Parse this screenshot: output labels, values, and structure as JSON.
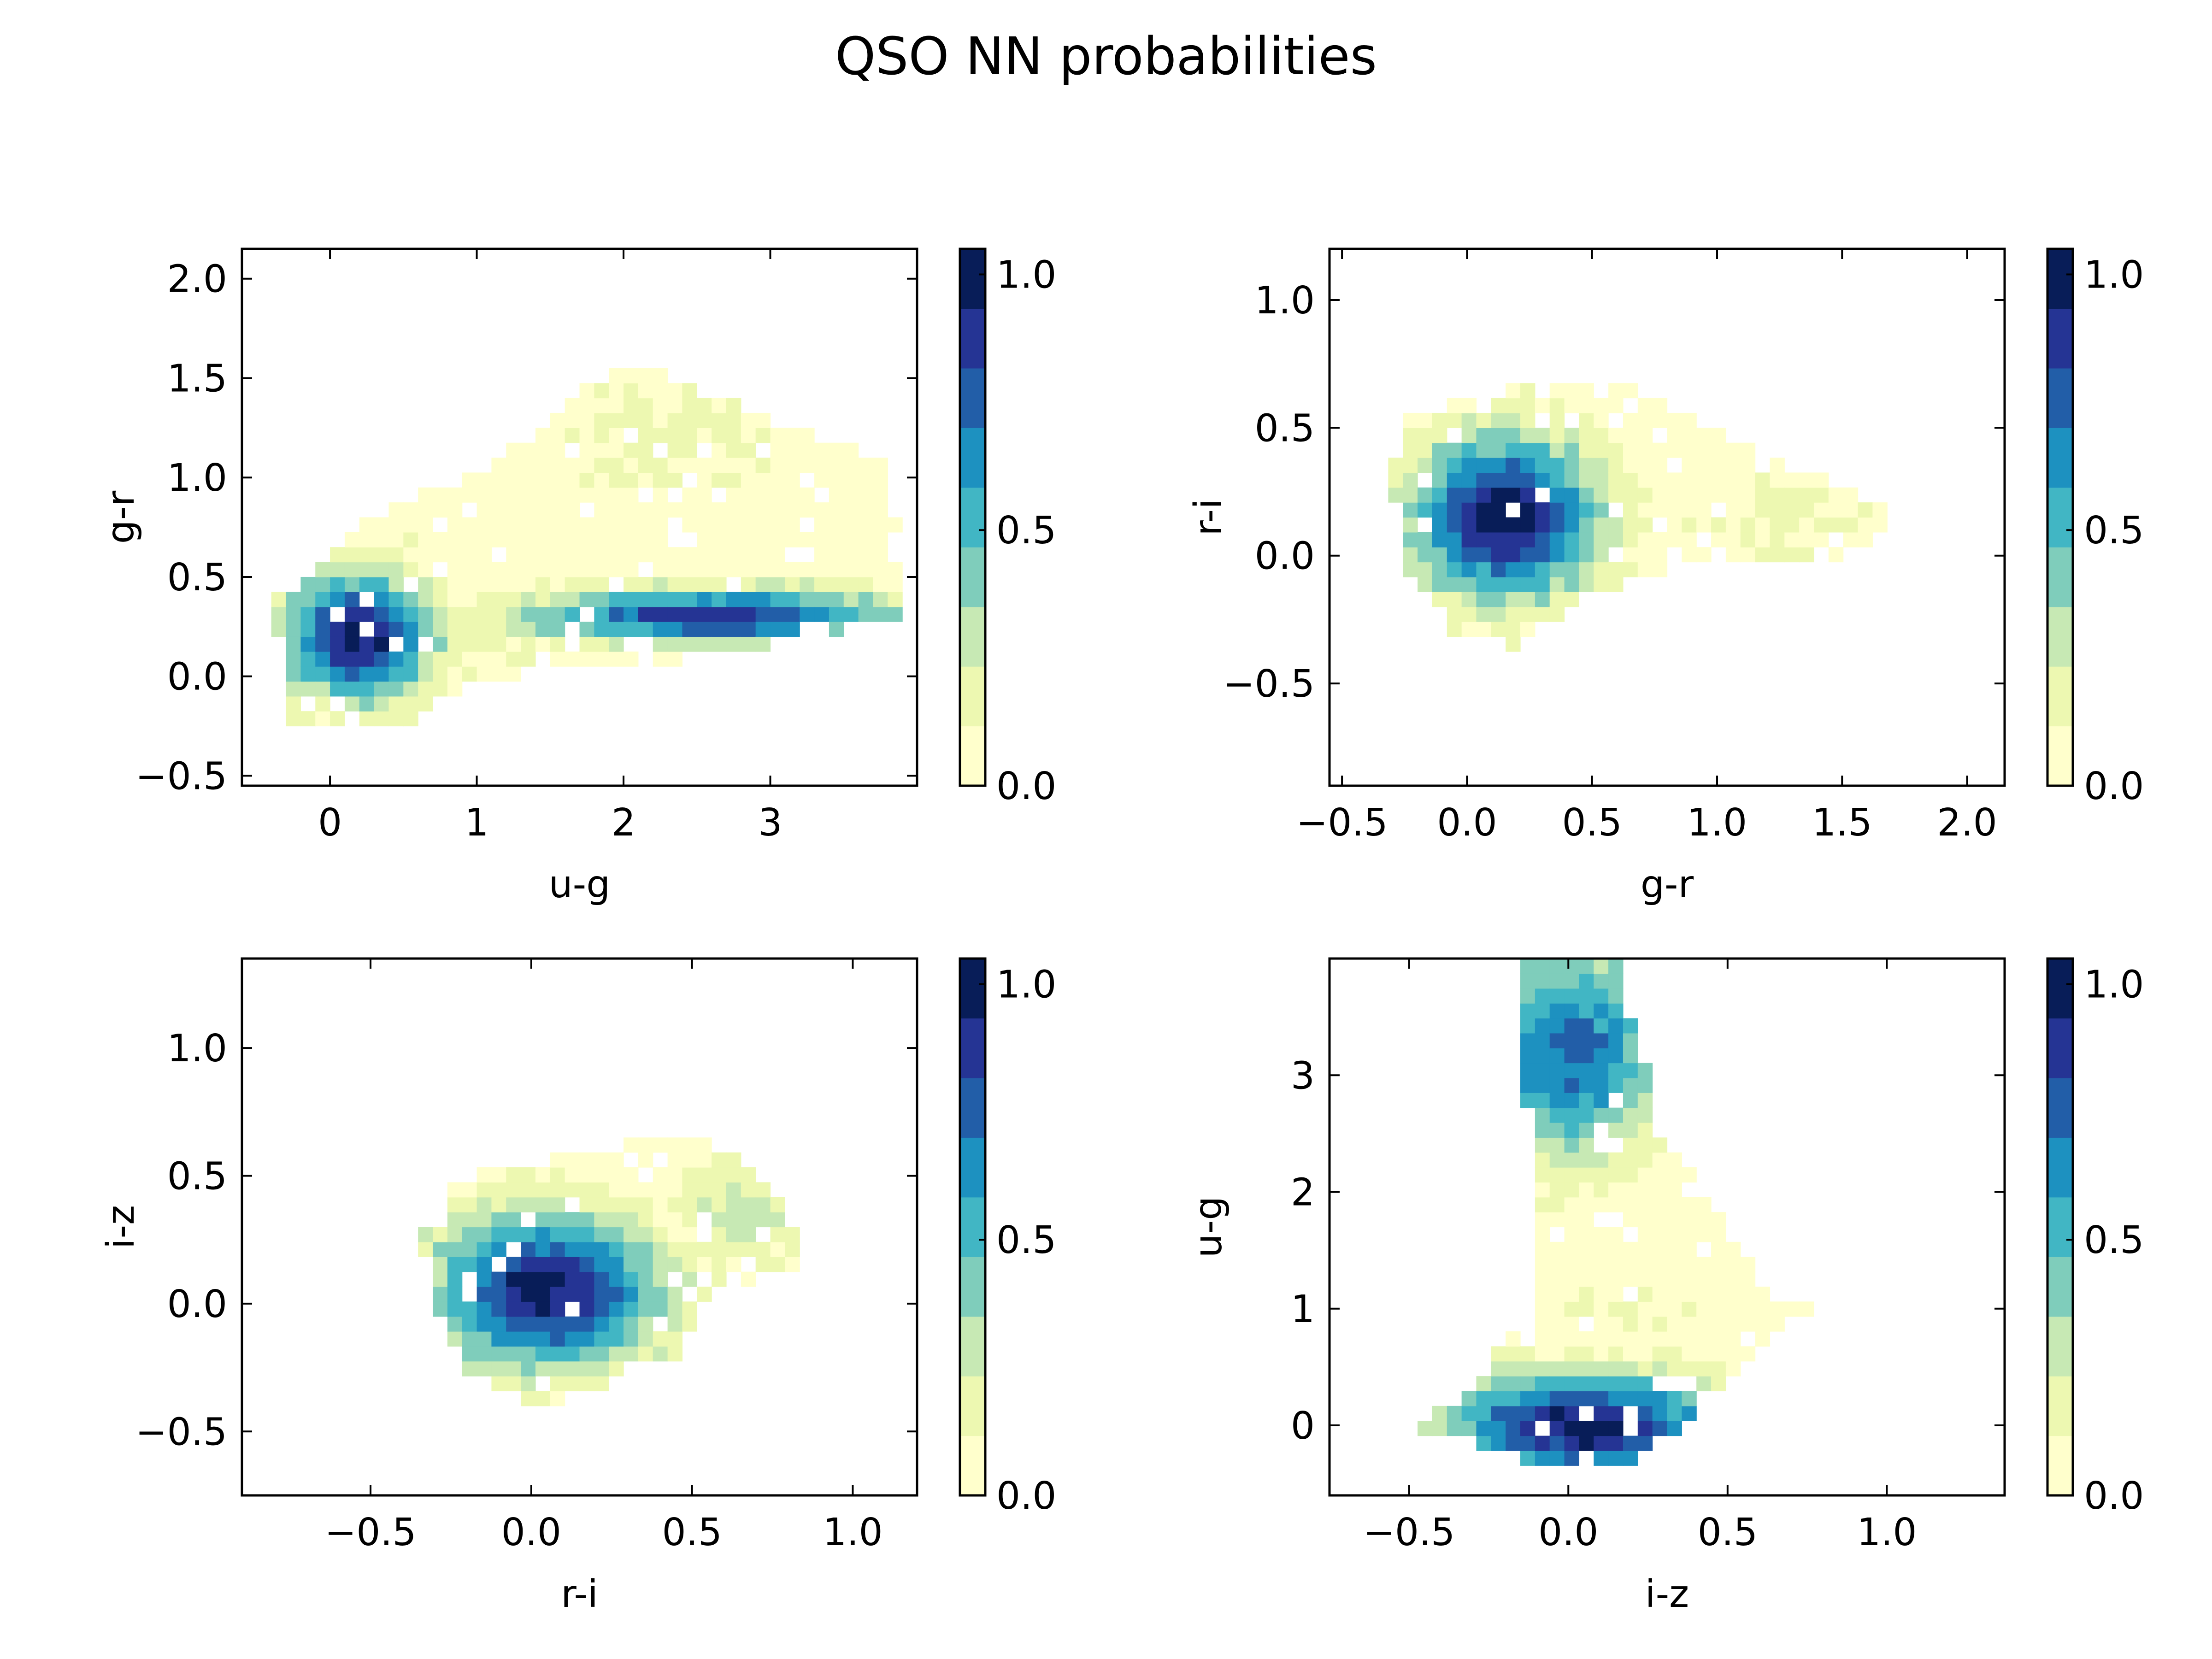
{
  "figure": {
    "title": "QSO NN probabilities"
  },
  "colors": {
    "levels": [
      "#ffffcc",
      "#edf8b1",
      "#c7e9b4",
      "#7fcdbb",
      "#41b6c4",
      "#1d91c0",
      "#225ea8",
      "#253494",
      "#081d58"
    ],
    "ink": "#000000"
  },
  "chart_data": [
    {
      "type": "contour",
      "title": "",
      "xlabel": "u-g",
      "ylabel": "g-r",
      "xlim": [
        -0.6,
        4.0
      ],
      "ylim": [
        -0.55,
        2.15
      ],
      "xticks": [
        "0",
        "1",
        "2",
        "3"
      ],
      "xtick_values": [
        0,
        1,
        2,
        3
      ],
      "yticks": [
        "−0.5",
        "0.0",
        "0.5",
        "1.0",
        "1.5",
        "2.0"
      ],
      "ytick_values": [
        -0.5,
        0,
        0.5,
        1.0,
        1.5,
        2.0
      ],
      "colorbar": {
        "ticks": [
          "0.0",
          "0.5",
          "1.0"
        ],
        "tick_values": [
          0,
          0.5,
          1.0
        ],
        "range": [
          0,
          1.05
        ]
      },
      "peaks": [
        {
          "x": 0.2,
          "y": 0.2,
          "sx": 0.5,
          "sy": 0.32,
          "p": 1.0
        },
        {
          "x": 2.6,
          "y": 0.3,
          "sx": 1.3,
          "sy": 0.14,
          "p": 0.88
        },
        {
          "x": 1.4,
          "y": 0.25,
          "sx": 0.3,
          "sy": 0.2,
          "p": 0.2
        },
        {
          "x": 2.3,
          "y": 1.2,
          "sx": 0.8,
          "sy": 0.4,
          "p": 0.15
        }
      ],
      "region": [
        [
          -0.45,
          0.35
        ],
        [
          -0.05,
          0.6
        ],
        [
          0.5,
          0.9
        ],
        [
          1.0,
          1.0
        ],
        [
          2.0,
          1.6
        ],
        [
          3.0,
          1.3
        ],
        [
          3.8,
          1.1
        ],
        [
          3.95,
          0.3
        ],
        [
          3.2,
          0.2
        ],
        [
          2.2,
          0.05
        ],
        [
          1.6,
          0.05
        ],
        [
          0.9,
          -0.05
        ],
        [
          0.55,
          -0.25
        ],
        [
          -0.25,
          -0.25
        ],
        [
          -0.3,
          0.1
        ]
      ]
    },
    {
      "type": "contour",
      "title": "",
      "xlabel": "g-r",
      "ylabel": "r-i",
      "xlim": [
        -0.55,
        2.15
      ],
      "ylim": [
        -0.9,
        1.2
      ],
      "xticks": [
        "−0.5",
        "0.0",
        "0.5",
        "1.0",
        "1.5",
        "2.0"
      ],
      "xtick_values": [
        -0.5,
        0,
        0.5,
        1.0,
        1.5,
        2.0
      ],
      "yticks": [
        "−0.5",
        "0.0",
        "0.5",
        "1.0"
      ],
      "ytick_values": [
        -0.5,
        0,
        0.5,
        1.0
      ],
      "colorbar": {
        "ticks": [
          "0.0",
          "0.5",
          "1.0"
        ],
        "tick_values": [
          0,
          0.5,
          1.0
        ],
        "range": [
          0,
          1.05
        ]
      },
      "peaks": [
        {
          "x": 0.15,
          "y": 0.15,
          "sx": 0.38,
          "sy": 0.32,
          "p": 1.0
        },
        {
          "x": 1.2,
          "y": 0.12,
          "sx": 0.45,
          "sy": 0.2,
          "p": 0.15
        }
      ],
      "region": [
        [
          -0.25,
          0.55
        ],
        [
          0.2,
          0.65
        ],
        [
          0.6,
          0.7
        ],
        [
          1.0,
          0.5
        ],
        [
          1.3,
          0.35
        ],
        [
          1.75,
          0.15
        ],
        [
          1.5,
          0.0
        ],
        [
          1.0,
          0.0
        ],
        [
          0.5,
          -0.15
        ],
        [
          0.2,
          -0.35
        ],
        [
          -0.05,
          -0.3
        ],
        [
          -0.25,
          -0.05
        ],
        [
          -0.3,
          0.3
        ]
      ]
    },
    {
      "type": "contour",
      "title": "",
      "xlabel": "r-i",
      "ylabel": "i-z",
      "xlim": [
        -0.9,
        1.2
      ],
      "ylim": [
        -0.75,
        1.35
      ],
      "xticks": [
        "−0.5",
        "0.0",
        "0.5",
        "1.0"
      ],
      "xtick_values": [
        -0.5,
        0,
        0.5,
        1.0
      ],
      "yticks": [
        "−0.5",
        "0.0",
        "0.5",
        "1.0"
      ],
      "ytick_values": [
        -0.5,
        0,
        0.5,
        1.0
      ],
      "colorbar": {
        "ticks": [
          "0.0",
          "0.5",
          "1.0"
        ],
        "tick_values": [
          0,
          0.5,
          1.0
        ],
        "range": [
          0,
          1.05
        ]
      },
      "peaks": [
        {
          "x": 0.05,
          "y": 0.05,
          "sx": 0.35,
          "sy": 0.3,
          "p": 1.0
        },
        {
          "x": 0.65,
          "y": 0.35,
          "sx": 0.22,
          "sy": 0.2,
          "p": 0.3
        }
      ],
      "region": [
        [
          -0.35,
          0.3
        ],
        [
          -0.2,
          0.5
        ],
        [
          0.0,
          0.55
        ],
        [
          0.3,
          0.62
        ],
        [
          0.55,
          0.68
        ],
        [
          0.8,
          0.35
        ],
        [
          0.85,
          0.15
        ],
        [
          0.55,
          0.05
        ],
        [
          0.45,
          -0.2
        ],
        [
          0.2,
          -0.35
        ],
        [
          0.0,
          -0.4
        ],
        [
          -0.2,
          -0.25
        ],
        [
          -0.3,
          0.0
        ]
      ]
    },
    {
      "type": "contour",
      "title": "",
      "xlabel": "i-z",
      "ylabel": "u-g",
      "xlim": [
        -0.75,
        1.37
      ],
      "ylim": [
        -0.6,
        4.0
      ],
      "xticks": [
        "−0.5",
        "0.0",
        "0.5",
        "1.0"
      ],
      "xtick_values": [
        -0.5,
        0,
        0.5,
        1.0
      ],
      "yticks": [
        "0",
        "1",
        "2",
        "3"
      ],
      "ytick_values": [
        0,
        1,
        2,
        3
      ],
      "colorbar": {
        "ticks": [
          "0.0",
          "0.5",
          "1.0"
        ],
        "tick_values": [
          0,
          0.5,
          1.0
        ],
        "range": [
          0,
          1.05
        ]
      },
      "peaks": [
        {
          "x": 0.05,
          "y": 0.0,
          "sx": 0.45,
          "sy": 0.45,
          "p": 1.0
        },
        {
          "x": 0.0,
          "y": 3.2,
          "sx": 0.3,
          "sy": 0.9,
          "p": 0.75
        },
        {
          "x": 0.15,
          "y": 1.0,
          "sx": 0.4,
          "sy": 0.25,
          "p": 0.12
        }
      ],
      "region": [
        [
          -0.5,
          -0.05
        ],
        [
          -0.3,
          0.3
        ],
        [
          -0.1,
          1.1
        ],
        [
          -0.12,
          2.2
        ],
        [
          -0.15,
          4.0
        ],
        [
          0.15,
          4.0
        ],
        [
          0.3,
          2.5
        ],
        [
          0.55,
          1.5
        ],
        [
          0.75,
          1.0
        ],
        [
          0.6,
          0.6
        ],
        [
          0.45,
          0.2
        ],
        [
          0.2,
          -0.3
        ],
        [
          -0.1,
          -0.35
        ],
        [
          -0.3,
          -0.15
        ]
      ]
    }
  ]
}
